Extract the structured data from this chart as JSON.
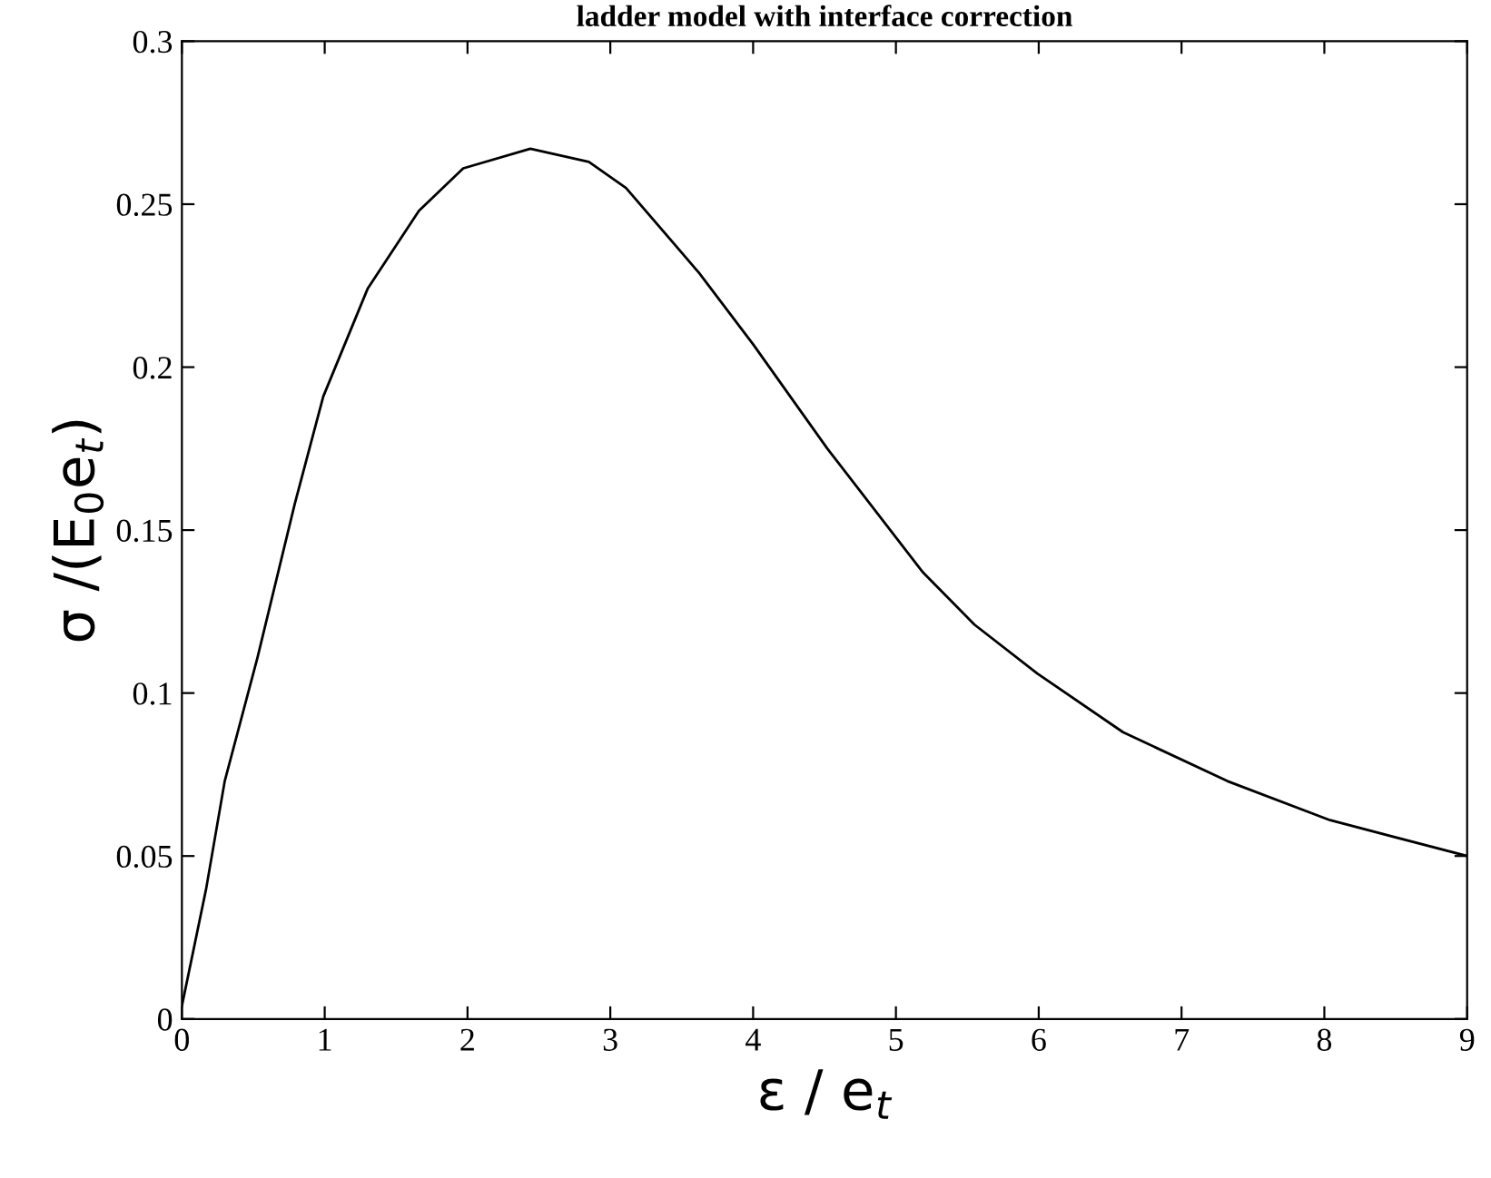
{
  "chart_data": {
    "type": "line",
    "title": "ladder model with interface correction",
    "xlabel": "ε / e$_{t}$",
    "ylabel": "σ /(E$_{0}$e$_{t}$)",
    "x": [
      0,
      0.17,
      0.3,
      0.53,
      0.79,
      0.99,
      1.3,
      1.66,
      1.97,
      2.44,
      2.85,
      3.11,
      3.62,
      4.0,
      4.52,
      5.19,
      5.55,
      5.99,
      6.59,
      7.32,
      8.04,
      9.0
    ],
    "series": [
      {
        "color": "#000000",
        "values": [
          0.004,
          0.04,
          0.073,
          0.111,
          0.158,
          0.191,
          0.224,
          0.248,
          0.261,
          0.267,
          0.263,
          0.255,
          0.229,
          0.207,
          0.175,
          0.137,
          0.121,
          0.106,
          0.088,
          0.073,
          0.061,
          0.05
        ]
      }
    ],
    "xlim": [
      0,
      9
    ],
    "xticks": [
      0,
      1,
      2,
      3,
      4,
      5,
      6,
      7,
      8,
      9
    ],
    "ylim": [
      0,
      0.3
    ],
    "yticks": [
      0,
      0.05,
      0.1,
      0.15,
      0.2,
      0.25,
      0.3
    ],
    "grid": false,
    "marker": "none",
    "line_style": "solid"
  }
}
